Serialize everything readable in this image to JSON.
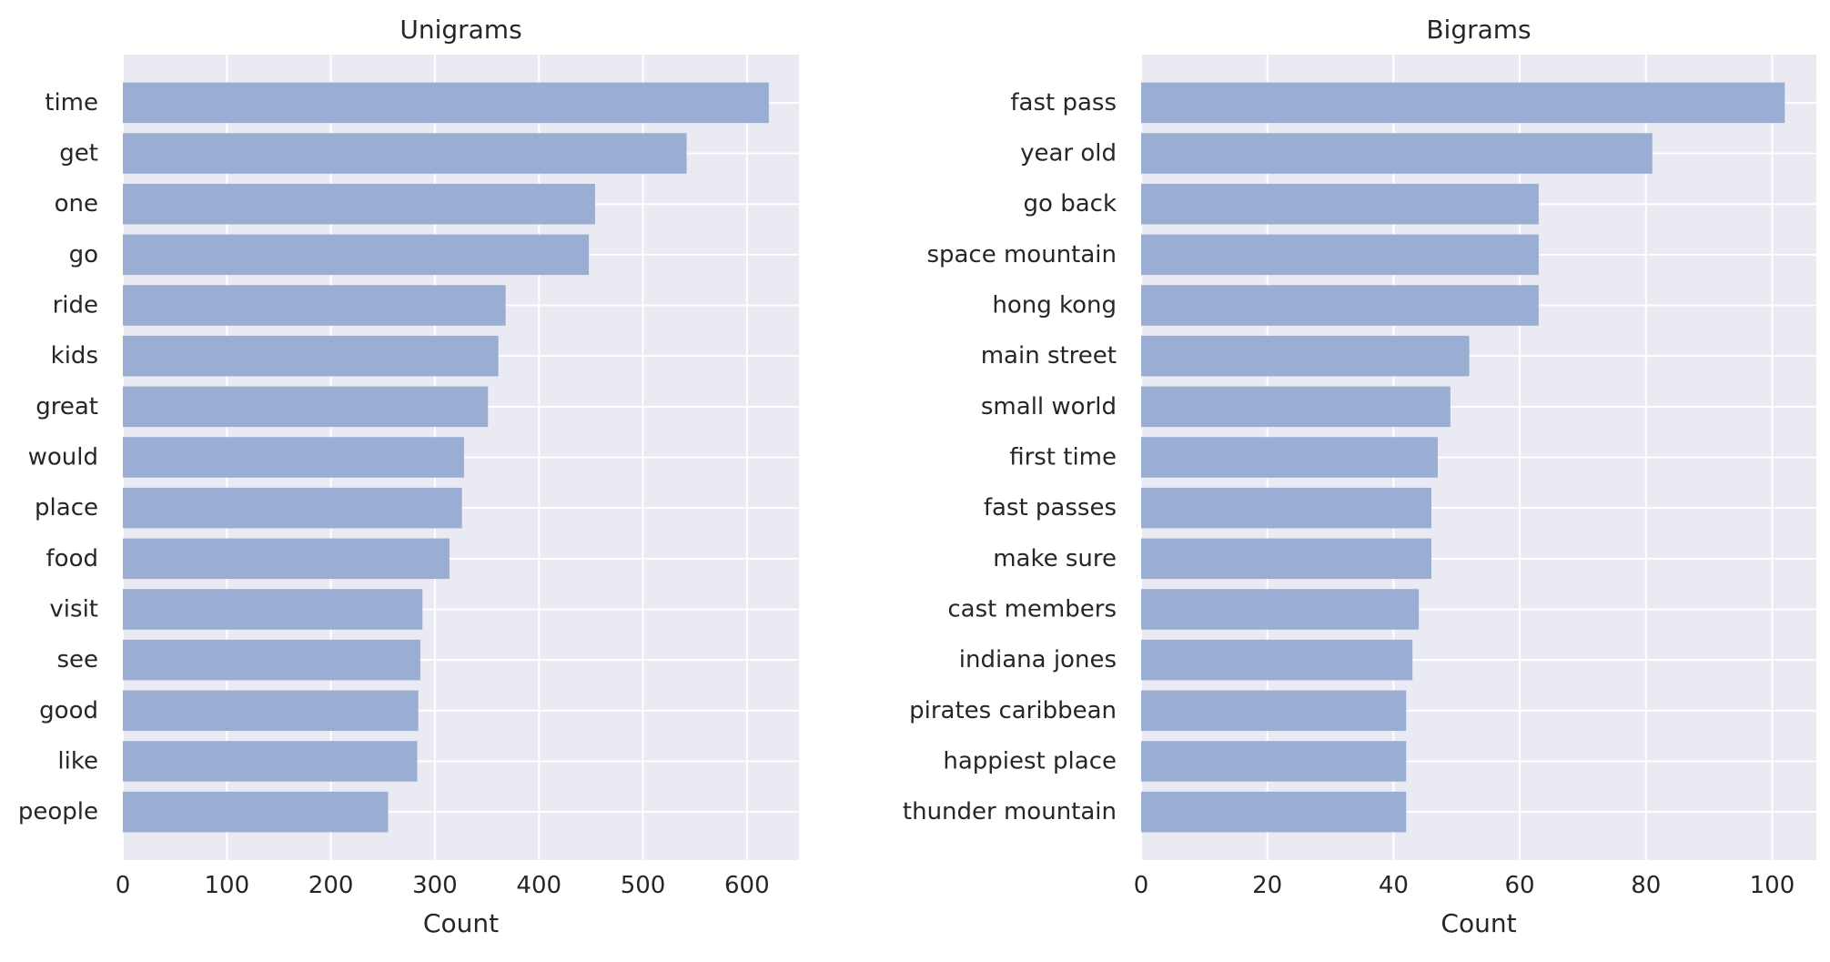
{
  "chart_data": [
    {
      "type": "bar",
      "orientation": "horizontal",
      "title": "Unigrams",
      "xlabel": "Count",
      "ylabel": "",
      "xlim": [
        0,
        650
      ],
      "xticks": [
        0,
        100,
        200,
        300,
        400,
        500,
        600
      ],
      "grid": true,
      "bar_color": "#9aadd2",
      "background": "#eaeaf2",
      "categories": [
        "time",
        "get",
        "one",
        "go",
        "ride",
        "kids",
        "great",
        "would",
        "place",
        "food",
        "visit",
        "see",
        "good",
        "like",
        "people"
      ],
      "values": [
        621,
        542,
        454,
        448,
        368,
        361,
        351,
        328,
        326,
        314,
        288,
        286,
        284,
        283,
        255
      ]
    },
    {
      "type": "bar",
      "orientation": "horizontal",
      "title": "Bigrams",
      "xlabel": "Count",
      "ylabel": "",
      "xlim": [
        0,
        107
      ],
      "xticks": [
        0,
        20,
        40,
        60,
        80,
        100
      ],
      "grid": true,
      "bar_color": "#9aadd2",
      "background": "#eaeaf2",
      "categories": [
        "fast pass",
        "year old",
        "go back",
        "space mountain",
        "hong kong",
        "main street",
        "small world",
        "first time",
        "fast passes",
        "make sure",
        "cast members",
        "indiana jones",
        "pirates caribbean",
        "happiest place",
        "thunder mountain"
      ],
      "values": [
        102,
        81,
        63,
        63,
        63,
        52,
        49,
        47,
        46,
        46,
        44,
        43,
        42,
        42,
        42
      ]
    }
  ]
}
